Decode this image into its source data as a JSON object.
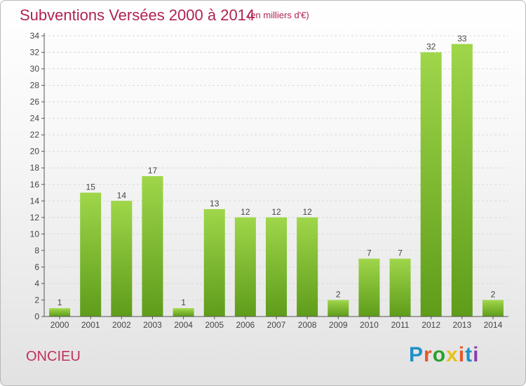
{
  "title": "Subventions Versées 2000 à 2014",
  "subtitle": "(en milliers d'€)",
  "commune": "ONCIEU",
  "logo": {
    "text": "Proxiti",
    "colors": [
      "#1e90c8",
      "#e8562a",
      "#2aa02a",
      "#e8c21a",
      "#e8562a",
      "#1e90c8",
      "#8a3fb0"
    ]
  },
  "chart_data": {
    "type": "bar",
    "categories": [
      "2000",
      "2001",
      "2002",
      "2003",
      "2004",
      "2005",
      "2006",
      "2007",
      "2008",
      "2009",
      "2010",
      "2011",
      "2012",
      "2013",
      "2014"
    ],
    "values": [
      1,
      15,
      14,
      17,
      1,
      13,
      12,
      12,
      12,
      2,
      7,
      7,
      32,
      33,
      2
    ],
    "data_labels": [
      "1",
      "15",
      "14",
      "17",
      "1",
      "13",
      "12",
      "12",
      "12",
      "2",
      "7",
      "7",
      "32",
      "33",
      "2"
    ],
    "ylim": [
      0,
      34
    ],
    "yticks": [
      0,
      2,
      4,
      6,
      8,
      10,
      12,
      14,
      16,
      18,
      20,
      22,
      24,
      26,
      28,
      30,
      32,
      34
    ],
    "grid": true,
    "bar_color": "#7cbf2e",
    "bar_color_light": "#9fd64a"
  }
}
